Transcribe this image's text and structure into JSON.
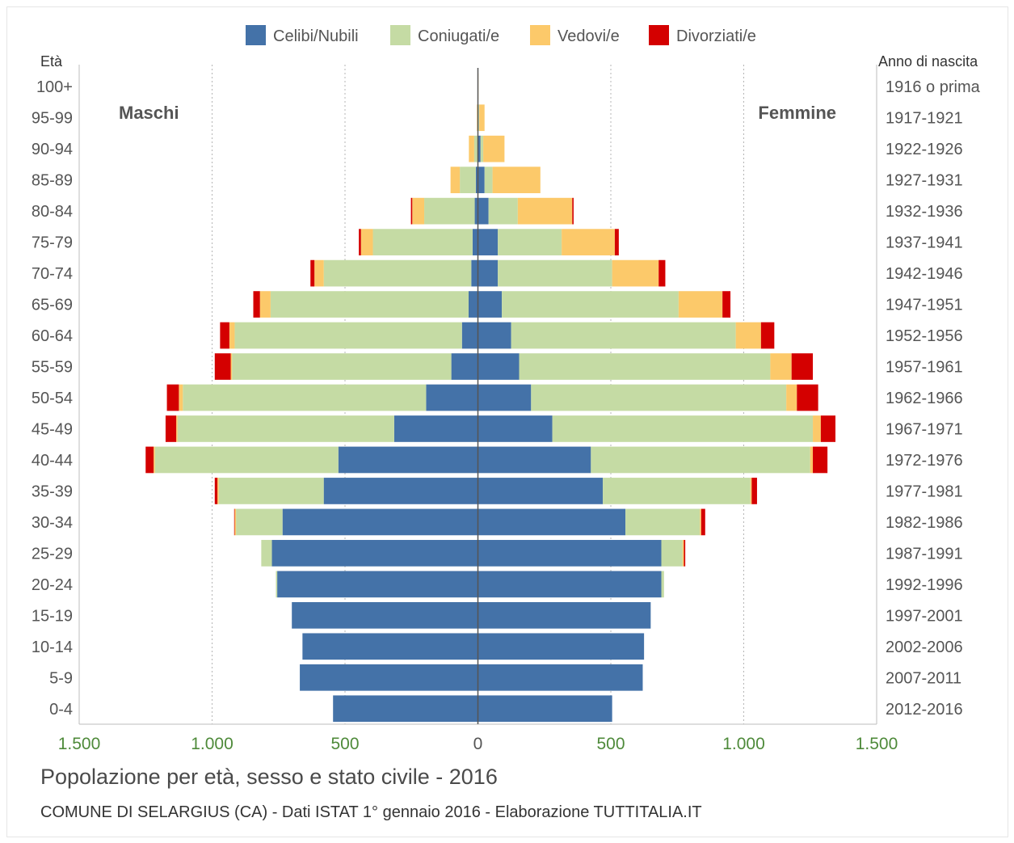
{
  "footer": {
    "title": "Popolazione per età, sesso e stato civile - 2016",
    "credit": "COMUNE DI SELARGIUS (CA) - Dati ISTAT 1° gennaio 2016 - Elaborazione TUTTITALIA.IT"
  },
  "chart_data": {
    "type": "bar",
    "orientation": "horizontal-stacked-pyramid",
    "title": "Popolazione per età, sesso e stato civile - 2016",
    "left_label": "Maschi",
    "right_label": "Femmine",
    "left_axis_title": "Età",
    "right_axis_title": "Anno di nascita",
    "x_ticks": [
      "1.500",
      "1.000",
      "500",
      "0",
      "500",
      "1.000",
      "1.500"
    ],
    "x_tick_values": [
      -1500,
      -1000,
      -500,
      0,
      500,
      1000,
      1500
    ],
    "xlim": [
      -1500,
      1500
    ],
    "grid": true,
    "legend_position": "top",
    "legend": [
      {
        "name": "Celibi/Nubili",
        "color": "#4472a8"
      },
      {
        "name": "Coniugati/e",
        "color": "#c5dba4"
      },
      {
        "name": "Vedovi/e",
        "color": "#fcc96a"
      },
      {
        "name": "Divorziati/e",
        "color": "#d40000"
      }
    ],
    "categories": [
      "100+",
      "95-99",
      "90-94",
      "85-89",
      "80-84",
      "75-79",
      "70-74",
      "65-69",
      "60-64",
      "55-59",
      "50-54",
      "45-49",
      "40-44",
      "35-39",
      "30-34",
      "25-29",
      "20-24",
      "15-19",
      "10-14",
      "5-9",
      "0-4"
    ],
    "birth_years": [
      "1916 o prima",
      "1917-1921",
      "1922-1926",
      "1927-1931",
      "1932-1936",
      "1937-1941",
      "1942-1946",
      "1947-1951",
      "1952-1956",
      "1957-1961",
      "1962-1966",
      "1967-1971",
      "1972-1976",
      "1977-1981",
      "1982-1986",
      "1987-1991",
      "1992-1996",
      "1997-2001",
      "2002-2006",
      "2007-2011",
      "2012-2016"
    ],
    "males": [
      [
        0,
        0,
        1,
        0
      ],
      [
        0,
        2,
        2,
        0
      ],
      [
        2,
        12,
        20,
        0
      ],
      [
        8,
        60,
        35,
        0
      ],
      [
        12,
        190,
        45,
        5
      ],
      [
        20,
        375,
        45,
        8
      ],
      [
        25,
        555,
        35,
        15
      ],
      [
        35,
        745,
        40,
        25
      ],
      [
        60,
        855,
        20,
        35
      ],
      [
        100,
        825,
        5,
        60
      ],
      [
        195,
        915,
        15,
        45
      ],
      [
        315,
        815,
        5,
        40
      ],
      [
        525,
        690,
        5,
        30
      ],
      [
        580,
        395,
        5,
        10
      ],
      [
        735,
        175,
        5,
        2
      ],
      [
        775,
        40,
        0,
        0
      ],
      [
        755,
        5,
        0,
        0
      ],
      [
        700,
        0,
        0,
        0
      ],
      [
        660,
        0,
        0,
        0
      ],
      [
        670,
        0,
        0,
        0
      ],
      [
        545,
        0,
        0,
        0
      ]
    ],
    "females": [
      [
        0,
        0,
        2,
        0
      ],
      [
        2,
        3,
        20,
        0
      ],
      [
        10,
        10,
        80,
        0
      ],
      [
        25,
        30,
        180,
        0
      ],
      [
        40,
        110,
        205,
        5
      ],
      [
        75,
        240,
        200,
        15
      ],
      [
        75,
        430,
        175,
        25
      ],
      [
        90,
        665,
        165,
        30
      ],
      [
        125,
        845,
        95,
        50
      ],
      [
        155,
        945,
        80,
        80
      ],
      [
        200,
        960,
        40,
        80
      ],
      [
        280,
        980,
        30,
        55
      ],
      [
        425,
        825,
        10,
        55
      ],
      [
        470,
        555,
        5,
        20
      ],
      [
        555,
        280,
        5,
        15
      ],
      [
        690,
        80,
        5,
        5
      ],
      [
        690,
        10,
        0,
        0
      ],
      [
        650,
        0,
        0,
        0
      ],
      [
        625,
        0,
        0,
        0
      ],
      [
        620,
        0,
        0,
        0
      ],
      [
        505,
        0,
        0,
        0
      ]
    ]
  }
}
